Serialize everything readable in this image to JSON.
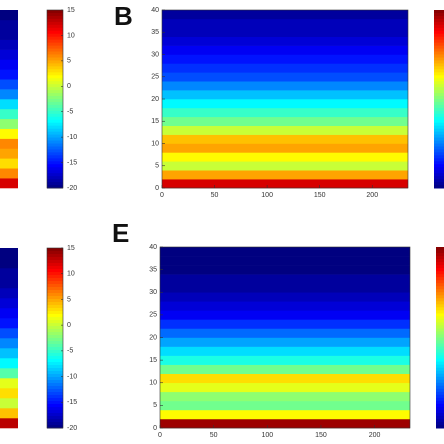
{
  "chart_data": [
    {
      "type": "heatmap",
      "values": [
        12,
        6,
        3,
        5,
        6,
        2,
        -2,
        -5,
        -8,
        -11,
        -13,
        -15,
        -16,
        -17,
        -18,
        -19,
        -19,
        -20
      ],
      "clim": [
        -20,
        15
      ],
      "cticks": [
        15,
        10,
        5,
        0,
        -5,
        -10,
        -15,
        -20
      ]
    },
    {
      "type": "heatmap",
      "label": "B",
      "xlim": [
        0,
        234
      ],
      "ylim": [
        0,
        40
      ],
      "xticks": [
        0,
        50,
        100,
        150,
        200
      ],
      "yticks": [
        0,
        5,
        10,
        15,
        20,
        25,
        30,
        35,
        40
      ],
      "frequency": [
        0,
        2,
        4,
        6,
        8,
        10,
        12,
        14,
        16,
        18,
        20,
        22,
        24,
        26,
        28,
        30,
        32,
        34,
        36,
        38
      ],
      "values": [
        12,
        5,
        0,
        2,
        5,
        4,
        0,
        -3,
        -5,
        -7,
        -9,
        -11,
        -13,
        -14,
        -15,
        -16,
        -17,
        -18,
        -18,
        -19
      ]
    },
    {
      "type": "heatmap",
      "values": [
        13,
        4,
        0,
        3,
        1,
        -4,
        -7,
        -9,
        -11,
        -13,
        -15,
        -16,
        -17,
        -18,
        -19,
        -19,
        -20,
        -20
      ],
      "clim": [
        -20,
        15
      ],
      "cticks": [
        15,
        10,
        5,
        0,
        -5,
        -10,
        -15,
        -20
      ]
    },
    {
      "type": "heatmap",
      "label": "E",
      "xlim": [
        0,
        233
      ],
      "ylim": [
        0,
        40
      ],
      "xticks": [
        0,
        50,
        100,
        150,
        200
      ],
      "yticks": [
        0,
        5,
        10,
        15,
        20,
        25,
        30,
        35,
        40
      ],
      "frequency": [
        0,
        2,
        4,
        6,
        8,
        10,
        12,
        14,
        16,
        18,
        20,
        22,
        24,
        26,
        28,
        30,
        32,
        34,
        36,
        38
      ],
      "values": [
        14,
        2,
        -3,
        -2,
        1,
        3,
        -3,
        -6,
        -8,
        -10,
        -12,
        -14,
        -16,
        -17,
        -18,
        -19,
        -19,
        -20,
        -20,
        -20
      ]
    }
  ]
}
